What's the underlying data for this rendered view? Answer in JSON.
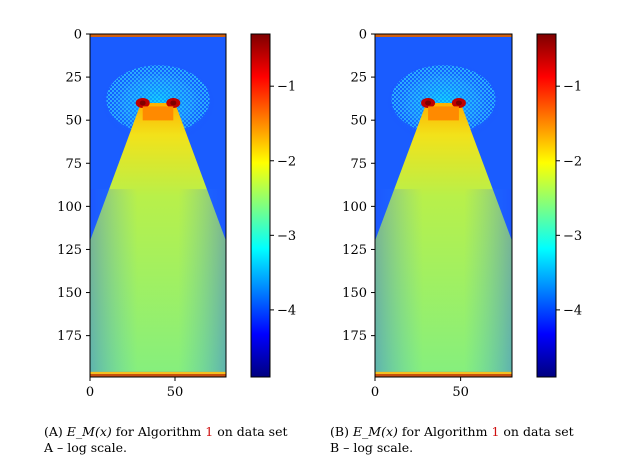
{
  "chart_data": [
    {
      "type": "heatmap",
      "panel": "A",
      "y_ticks": [
        0,
        25,
        50,
        75,
        100,
        125,
        150,
        175
      ],
      "x_ticks": [
        0,
        50
      ],
      "ylim": [
        199,
        0
      ],
      "xlim": [
        0,
        80
      ],
      "colorbar": {
        "ticks": [
          "−1",
          "−2",
          "−3",
          "−4"
        ],
        "tick_values": [
          -1,
          -2,
          -3,
          -4
        ],
        "range": [
          -4.9,
          -0.3
        ],
        "colormap": "jet",
        "scale": "log"
      },
      "hot_spots": [
        {
          "x": 31,
          "y": 40
        },
        {
          "x": 49,
          "y": 40
        }
      ],
      "caption": {
        "tag": "(A)",
        "math": "E_M(x)",
        "pre": "for Algorithm",
        "ref": "1",
        "post": "on data set",
        "line2": "A – log scale."
      }
    },
    {
      "type": "heatmap",
      "panel": "B",
      "y_ticks": [
        0,
        25,
        50,
        75,
        100,
        125,
        150,
        175
      ],
      "x_ticks": [
        0,
        50
      ],
      "ylim": [
        199,
        0
      ],
      "xlim": [
        0,
        80
      ],
      "colorbar": {
        "ticks": [
          "−1",
          "−2",
          "−3",
          "−4"
        ],
        "tick_values": [
          -1,
          -2,
          -3,
          -4
        ],
        "range": [
          -4.9,
          -0.3
        ],
        "colormap": "jet",
        "scale": "log"
      },
      "hot_spots": [
        {
          "x": 31,
          "y": 40
        },
        {
          "x": 49,
          "y": 40
        }
      ],
      "caption": {
        "tag": "(B)",
        "math": "E_M(x)",
        "pre": "for Algorithm",
        "ref": "1",
        "post": "on data set",
        "line2": "B – log scale."
      }
    }
  ]
}
